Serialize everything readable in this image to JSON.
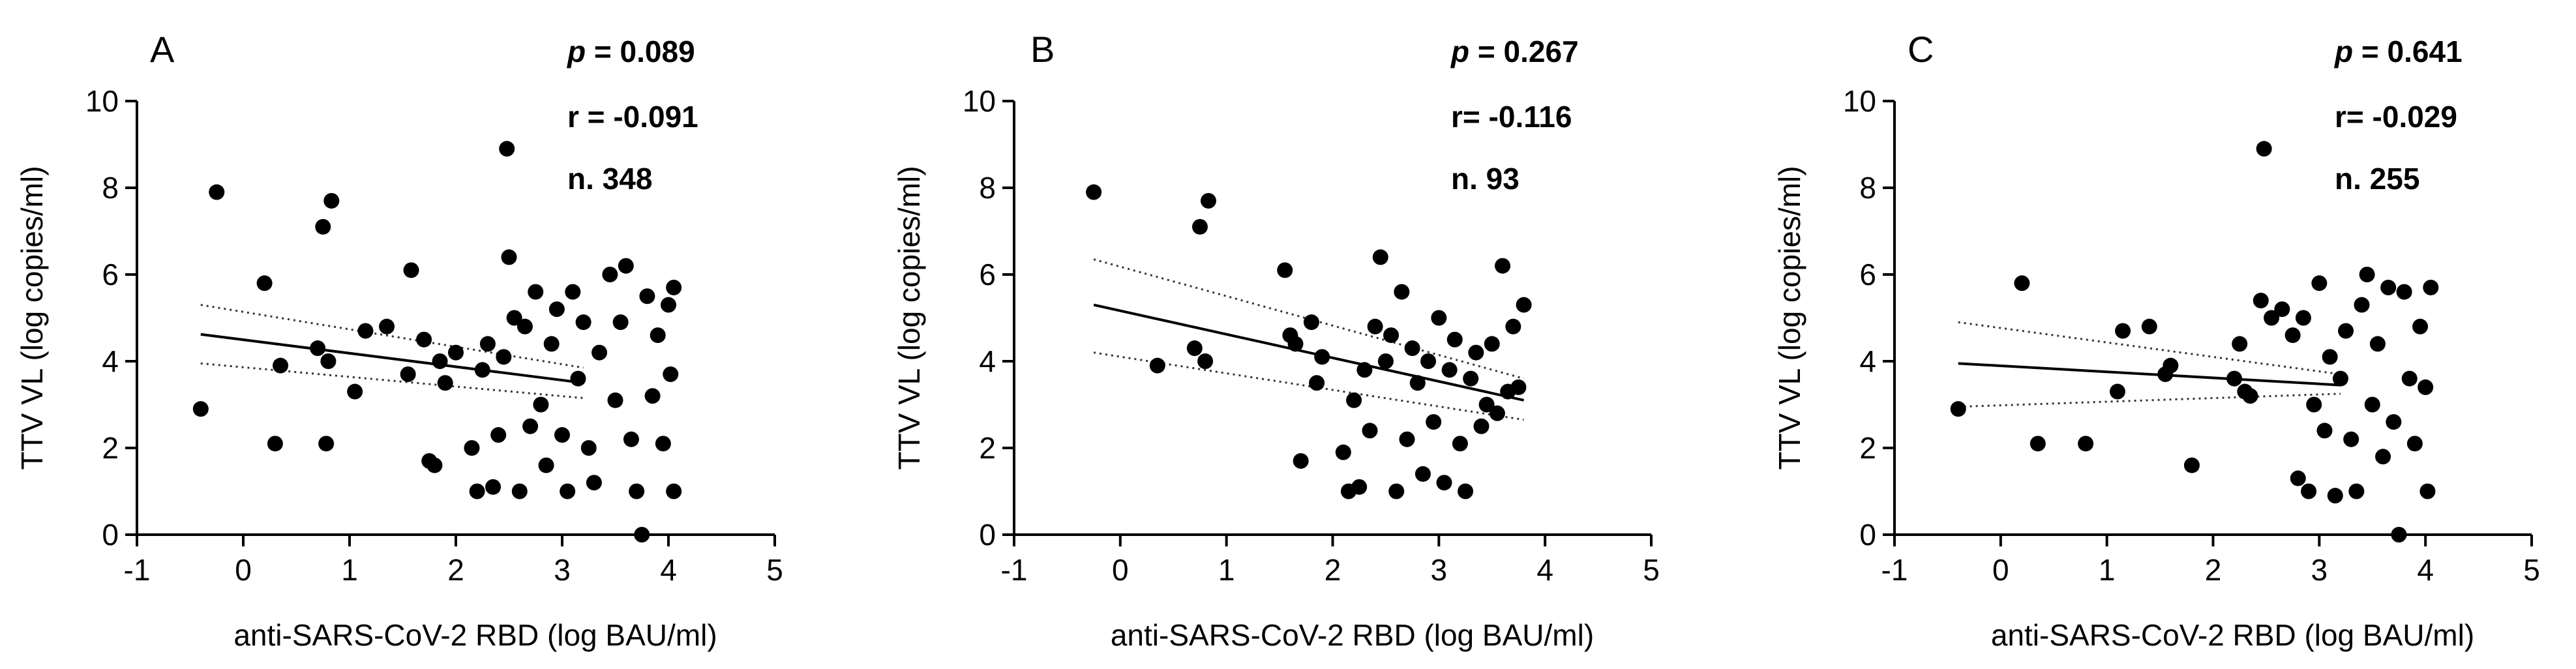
{
  "chart_data": [
    {
      "type": "scatter",
      "panel": "A",
      "xlabel": "anti-SARS-CoV-2 RBD (log BAU/ml)",
      "ylabel": "TTV VL (log copies/ml)",
      "xlim": [
        -1,
        5
      ],
      "ylim": [
        0,
        10
      ],
      "xticks": [
        -1,
        0,
        1,
        2,
        3,
        4,
        5
      ],
      "yticks": [
        0,
        2,
        4,
        6,
        8,
        10
      ],
      "stats": {
        "p_label": "p",
        "p": "= 0.089",
        "r": "r = -0.091",
        "n": "n.  348"
      },
      "fit": {
        "x": [
          -0.4,
          3.2
        ],
        "y": [
          4.62,
          3.5
        ]
      },
      "ci_upper": {
        "x": [
          -0.4,
          3.2
        ],
        "y": [
          5.3,
          3.85
        ]
      },
      "ci_lower": {
        "x": [
          -0.4,
          3.2
        ],
        "y": [
          3.95,
          3.15
        ]
      },
      "points": [
        [
          -0.4,
          2.9
        ],
        [
          -0.25,
          7.9
        ],
        [
          0.2,
          5.8
        ],
        [
          0.35,
          3.9
        ],
        [
          0.3,
          2.1
        ],
        [
          0.7,
          4.3
        ],
        [
          0.75,
          7.1
        ],
        [
          0.83,
          7.7
        ],
        [
          0.78,
          2.1
        ],
        [
          0.8,
          4.0
        ],
        [
          1.05,
          3.3
        ],
        [
          1.15,
          4.7
        ],
        [
          1.35,
          4.8
        ],
        [
          1.55,
          3.7
        ],
        [
          1.58,
          6.1
        ],
        [
          1.7,
          4.5
        ],
        [
          1.75,
          1.7
        ],
        [
          1.8,
          1.6
        ],
        [
          1.85,
          4.0
        ],
        [
          1.9,
          3.5
        ],
        [
          2.0,
          4.2
        ],
        [
          2.15,
          2.0
        ],
        [
          2.2,
          1.0
        ],
        [
          2.25,
          3.8
        ],
        [
          2.3,
          4.4
        ],
        [
          2.35,
          1.1
        ],
        [
          2.4,
          2.3
        ],
        [
          2.45,
          4.1
        ],
        [
          2.48,
          8.9
        ],
        [
          2.5,
          6.4
        ],
        [
          2.55,
          5.0
        ],
        [
          2.6,
          1.0
        ],
        [
          2.65,
          4.8
        ],
        [
          2.7,
          2.5
        ],
        [
          2.75,
          5.6
        ],
        [
          2.8,
          3.0
        ],
        [
          2.85,
          1.6
        ],
        [
          2.9,
          4.4
        ],
        [
          2.95,
          5.2
        ],
        [
          3.0,
          2.3
        ],
        [
          3.05,
          1.0
        ],
        [
          3.1,
          5.6
        ],
        [
          3.15,
          3.6
        ],
        [
          3.2,
          4.9
        ],
        [
          3.25,
          2.0
        ],
        [
          3.3,
          1.2
        ],
        [
          3.35,
          4.2
        ],
        [
          3.45,
          6.0
        ],
        [
          3.5,
          3.1
        ],
        [
          3.55,
          4.9
        ],
        [
          3.6,
          6.2
        ],
        [
          3.65,
          2.2
        ],
        [
          3.7,
          1.0
        ],
        [
          3.75,
          0.0
        ],
        [
          3.8,
          5.5
        ],
        [
          3.85,
          3.2
        ],
        [
          3.9,
          4.6
        ],
        [
          3.95,
          2.1
        ],
        [
          4.0,
          5.3
        ],
        [
          4.02,
          3.7
        ],
        [
          4.05,
          1.0
        ],
        [
          4.05,
          5.7
        ]
      ]
    },
    {
      "type": "scatter",
      "panel": "B",
      "xlabel": "anti-SARS-CoV-2 RBD (log BAU/ml)",
      "ylabel": "TTV VL (log copies/ml)",
      "xlim": [
        -1,
        5
      ],
      "ylim": [
        0,
        10
      ],
      "xticks": [
        -1,
        0,
        1,
        2,
        3,
        4,
        5
      ],
      "yticks": [
        0,
        2,
        4,
        6,
        8,
        10
      ],
      "stats": {
        "p_label": "p",
        "p": "= 0.267",
        "r": "r= -0.116",
        "n": "n.  93"
      },
      "fit": {
        "x": [
          -0.25,
          3.8
        ],
        "y": [
          5.3,
          3.1
        ]
      },
      "ci_upper": {
        "x": [
          -0.25,
          3.8
        ],
        "y": [
          6.35,
          3.6
        ]
      },
      "ci_lower": {
        "x": [
          -0.25,
          3.8
        ],
        "y": [
          4.2,
          2.65
        ]
      },
      "points": [
        [
          -0.25,
          7.9
        ],
        [
          0.35,
          3.9
        ],
        [
          0.7,
          4.3
        ],
        [
          0.75,
          7.1
        ],
        [
          0.83,
          7.7
        ],
        [
          0.8,
          4.0
        ],
        [
          1.55,
          6.1
        ],
        [
          1.6,
          4.6
        ],
        [
          1.65,
          4.4
        ],
        [
          1.7,
          1.7
        ],
        [
          1.8,
          4.9
        ],
        [
          1.85,
          3.5
        ],
        [
          1.9,
          4.1
        ],
        [
          2.1,
          1.9
        ],
        [
          2.15,
          1.0
        ],
        [
          2.2,
          3.1
        ],
        [
          2.25,
          1.1
        ],
        [
          2.3,
          3.8
        ],
        [
          2.35,
          2.4
        ],
        [
          2.4,
          4.8
        ],
        [
          2.45,
          6.4
        ],
        [
          2.5,
          4.0
        ],
        [
          2.55,
          4.6
        ],
        [
          2.6,
          1.0
        ],
        [
          2.65,
          5.6
        ],
        [
          2.7,
          2.2
        ],
        [
          2.75,
          4.3
        ],
        [
          2.8,
          3.5
        ],
        [
          2.85,
          1.4
        ],
        [
          2.9,
          4.0
        ],
        [
          2.95,
          2.6
        ],
        [
          3.0,
          5.0
        ],
        [
          3.05,
          1.2
        ],
        [
          3.1,
          3.8
        ],
        [
          3.15,
          4.5
        ],
        [
          3.2,
          2.1
        ],
        [
          3.25,
          1.0
        ],
        [
          3.3,
          3.6
        ],
        [
          3.35,
          4.2
        ],
        [
          3.4,
          2.5
        ],
        [
          3.45,
          3.0
        ],
        [
          3.5,
          4.4
        ],
        [
          3.55,
          2.8
        ],
        [
          3.6,
          6.2
        ],
        [
          3.65,
          3.3
        ],
        [
          3.7,
          4.8
        ],
        [
          3.75,
          3.4
        ],
        [
          3.8,
          5.3
        ]
      ]
    },
    {
      "type": "scatter",
      "panel": "C",
      "xlabel": "anti-SARS-CoV-2 RBD (log BAU/ml)",
      "ylabel": "TTV VL (log copies/ml)",
      "xlim": [
        -1,
        5
      ],
      "ylim": [
        0,
        10
      ],
      "xticks": [
        -1,
        0,
        1,
        2,
        3,
        4,
        5
      ],
      "yticks": [
        0,
        2,
        4,
        6,
        8,
        10
      ],
      "stats": {
        "p_label": "p",
        "p": "= 0.641",
        "r": "r= -0.029",
        "n": "n. 255"
      },
      "fit": {
        "x": [
          -0.4,
          3.2
        ],
        "y": [
          3.95,
          3.45
        ]
      },
      "ci_upper": {
        "x": [
          -0.4,
          3.2
        ],
        "y": [
          4.9,
          3.7
        ]
      },
      "ci_lower": {
        "x": [
          -0.4,
          3.2
        ],
        "y": [
          2.95,
          3.25
        ]
      },
      "points": [
        [
          -0.4,
          2.9
        ],
        [
          0.2,
          5.8
        ],
        [
          0.35,
          2.1
        ],
        [
          0.8,
          2.1
        ],
        [
          1.1,
          3.3
        ],
        [
          1.15,
          4.7
        ],
        [
          1.4,
          4.8
        ],
        [
          1.55,
          3.7
        ],
        [
          1.6,
          3.9
        ],
        [
          1.8,
          1.6
        ],
        [
          2.2,
          3.6
        ],
        [
          2.25,
          4.4
        ],
        [
          2.3,
          3.3
        ],
        [
          2.35,
          3.2
        ],
        [
          2.45,
          5.4
        ],
        [
          2.48,
          8.9
        ],
        [
          2.55,
          5.0
        ],
        [
          2.65,
          5.2
        ],
        [
          2.75,
          4.6
        ],
        [
          2.8,
          1.3
        ],
        [
          2.85,
          5.0
        ],
        [
          2.9,
          1.0
        ],
        [
          2.95,
          3.0
        ],
        [
          3.0,
          5.8
        ],
        [
          3.05,
          2.4
        ],
        [
          3.1,
          4.1
        ],
        [
          3.15,
          0.9
        ],
        [
          3.2,
          3.6
        ],
        [
          3.25,
          4.7
        ],
        [
          3.3,
          2.2
        ],
        [
          3.35,
          1.0
        ],
        [
          3.4,
          5.3
        ],
        [
          3.45,
          6.0
        ],
        [
          3.5,
          3.0
        ],
        [
          3.55,
          4.4
        ],
        [
          3.6,
          1.8
        ],
        [
          3.65,
          5.7
        ],
        [
          3.7,
          2.6
        ],
        [
          3.75,
          0.0
        ],
        [
          3.8,
          5.6
        ],
        [
          3.85,
          3.6
        ],
        [
          3.9,
          2.1
        ],
        [
          3.95,
          4.8
        ],
        [
          4.0,
          3.4
        ],
        [
          4.02,
          1.0
        ],
        [
          4.05,
          5.7
        ]
      ]
    }
  ]
}
